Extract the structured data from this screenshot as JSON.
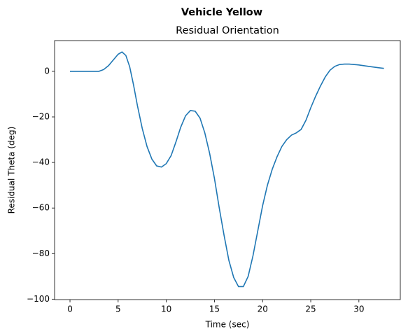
{
  "chart_data": {
    "type": "line",
    "suptitle": "Vehicle Yellow",
    "title": "Residual Orientation",
    "xlabel": "Time (sec)",
    "ylabel": "Residual Theta (deg)",
    "color": "#1f77b4",
    "x": [
      0,
      1,
      2,
      3,
      3.5,
      4,
      4.5,
      5,
      5.4,
      5.8,
      6.2,
      6.6,
      7,
      7.5,
      8,
      8.5,
      9,
      9.5,
      10,
      10.5,
      11,
      11.5,
      12,
      12.5,
      13,
      13.5,
      14,
      14.5,
      15,
      15.5,
      16,
      16.5,
      17,
      17.5,
      18,
      18.5,
      19,
      19.5,
      20,
      20.5,
      21,
      21.5,
      22,
      22.5,
      23,
      23.5,
      24,
      24.5,
      25,
      25.5,
      26,
      26.5,
      27,
      27.5,
      28,
      28.5,
      29,
      29.5,
      30,
      31,
      32,
      32.6
    ],
    "values": [
      0,
      0,
      0,
      0,
      0.8,
      2.5,
      5,
      7.5,
      8.5,
      7,
      2,
      -6,
      -15,
      -25,
      -33,
      -38.5,
      -41.5,
      -42,
      -40.5,
      -37,
      -31,
      -24.5,
      -19.5,
      -17.2,
      -17.5,
      -20.5,
      -27,
      -36,
      -47,
      -60,
      -72,
      -83,
      -90.5,
      -94.5,
      -94.5,
      -90,
      -81,
      -70,
      -59,
      -50,
      -43,
      -37.5,
      -33,
      -30,
      -28,
      -27,
      -25.5,
      -21.5,
      -16,
      -11,
      -6.5,
      -2.5,
      0.5,
      2.2,
      3,
      3.2,
      3.2,
      3,
      2.8,
      2.2,
      1.6,
      1.3
    ],
    "xlim": [
      -1.6,
      34.3
    ],
    "ylim": [
      -100.2,
      13.5
    ],
    "xticks": [
      0,
      5,
      10,
      15,
      20,
      25,
      30
    ],
    "yticks": [
      {
        "value": -100,
        "label": "−100"
      },
      {
        "value": -80,
        "label": "−80"
      },
      {
        "value": -60,
        "label": "−60"
      },
      {
        "value": -40,
        "label": "−40"
      },
      {
        "value": -20,
        "label": "−20"
      },
      0
    ]
  }
}
